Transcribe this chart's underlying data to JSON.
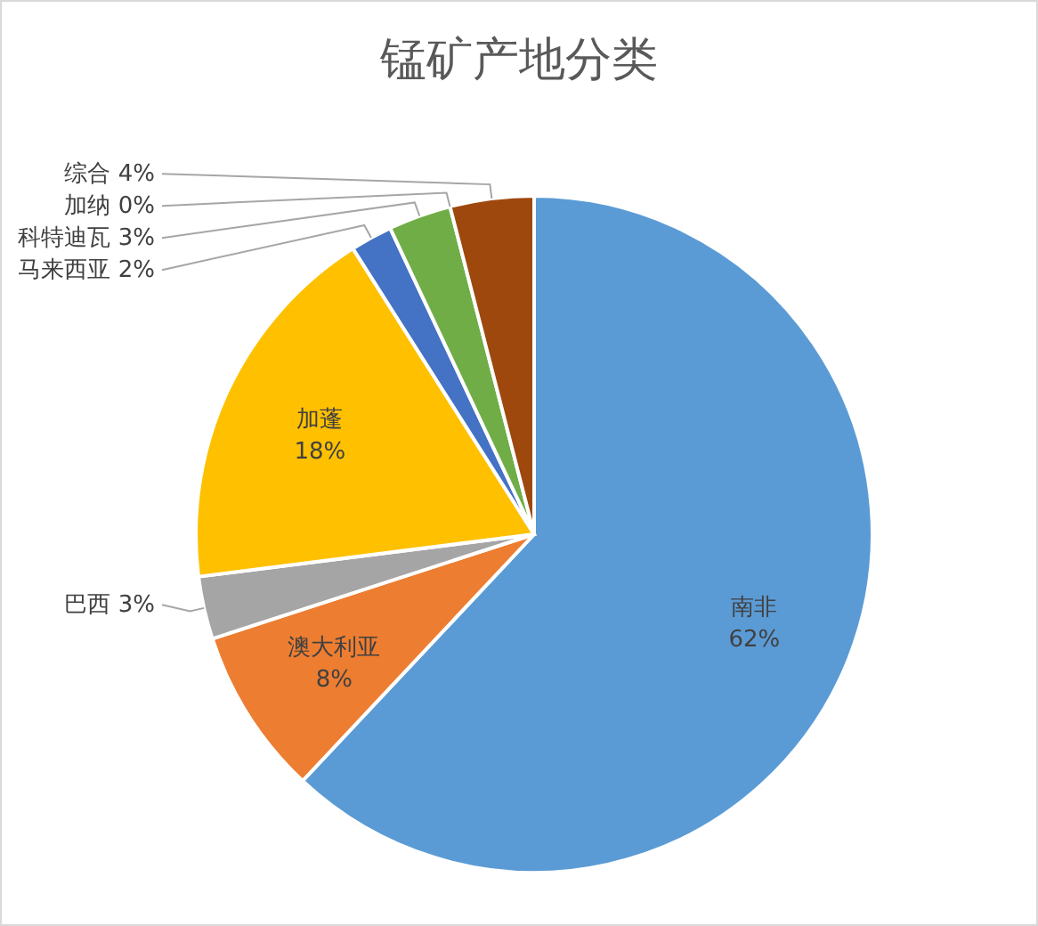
{
  "chart_data": {
    "type": "pie",
    "title": "锰矿产地分类",
    "categories": [
      "南非",
      "澳大利亚",
      "巴西",
      "加蓬",
      "马来西亚",
      "科特迪瓦",
      "加纳",
      "综合"
    ],
    "values": [
      62,
      8,
      3,
      18,
      2,
      3,
      0,
      4
    ],
    "value_labels": [
      "62%",
      "8%",
      "3%",
      "18%",
      "2%",
      "3%",
      "0%",
      "4%"
    ],
    "colors": [
      "#5b9bd5",
      "#ed7d31",
      "#a5a5a5",
      "#ffc000",
      "#4472c4",
      "#70ad47",
      "#255e91",
      "#9e480e"
    ]
  }
}
